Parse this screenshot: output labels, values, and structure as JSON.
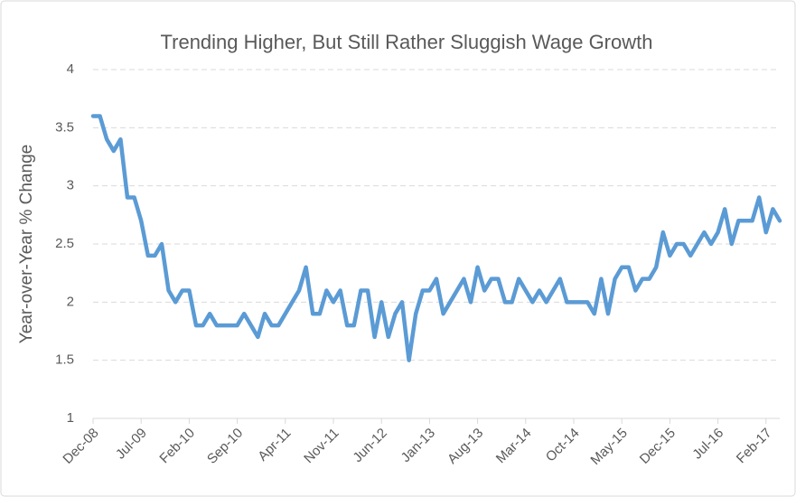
{
  "chart_data": {
    "type": "line",
    "title": "Trending Higher, But Still Rather Sluggish Wage Growth",
    "y_label": "Year-over-Year % Change",
    "categories": [
      "Dec-08",
      null,
      null,
      null,
      null,
      null,
      null,
      "Jul-09",
      null,
      null,
      null,
      null,
      null,
      null,
      "Feb-10",
      null,
      null,
      null,
      null,
      null,
      null,
      "Sep-10",
      null,
      null,
      null,
      null,
      null,
      null,
      "Apr-11",
      null,
      null,
      null,
      null,
      null,
      null,
      "Nov-11",
      null,
      null,
      null,
      null,
      null,
      null,
      "Jun-12",
      null,
      null,
      null,
      null,
      null,
      null,
      "Jan-13",
      null,
      null,
      null,
      null,
      null,
      null,
      "Aug-13",
      null,
      null,
      null,
      null,
      null,
      null,
      "Mar-14",
      null,
      null,
      null,
      null,
      null,
      null,
      "Oct-14",
      null,
      null,
      null,
      null,
      null,
      null,
      "May-15",
      null,
      null,
      null,
      null,
      null,
      null,
      "Dec-15",
      null,
      null,
      null,
      null,
      null,
      null,
      "Jul-16",
      null,
      null,
      null,
      null,
      null,
      null,
      "Feb-17",
      null,
      null
    ],
    "series": [
      {
        "name": "Year-over-Year % Change",
        "color": "#5b9bd5",
        "values": [
          3.6,
          3.6,
          3.4,
          3.3,
          3.4,
          2.9,
          2.9,
          2.7,
          2.4,
          2.4,
          2.5,
          2.1,
          2.0,
          2.1,
          2.1,
          1.8,
          1.8,
          1.9,
          1.8,
          1.8,
          1.8,
          1.8,
          1.9,
          1.8,
          1.7,
          1.9,
          1.8,
          1.8,
          1.9,
          2.0,
          2.1,
          2.3,
          1.9,
          1.9,
          2.1,
          2.0,
          2.1,
          1.8,
          1.8,
          2.1,
          2.1,
          1.7,
          2.0,
          1.7,
          1.9,
          2.0,
          1.5,
          1.9,
          2.1,
          2.1,
          2.2,
          1.9,
          2.0,
          2.1,
          2.2,
          2.0,
          2.3,
          2.1,
          2.2,
          2.2,
          2.0,
          2.0,
          2.2,
          2.1,
          2.0,
          2.1,
          2.0,
          2.1,
          2.2,
          2.0,
          2.0,
          2.0,
          2.0,
          1.9,
          2.2,
          1.9,
          2.2,
          2.3,
          2.3,
          2.1,
          2.2,
          2.2,
          2.3,
          2.6,
          2.4,
          2.5,
          2.5,
          2.4,
          2.5,
          2.6,
          2.5,
          2.6,
          2.8,
          2.5,
          2.7,
          2.7,
          2.7,
          2.9,
          2.6,
          2.8,
          2.7
        ]
      }
    ],
    "ylim": [
      1,
      4
    ],
    "yticks": [
      1,
      1.5,
      2,
      2.5,
      3,
      3.5,
      4
    ],
    "grid": true
  }
}
